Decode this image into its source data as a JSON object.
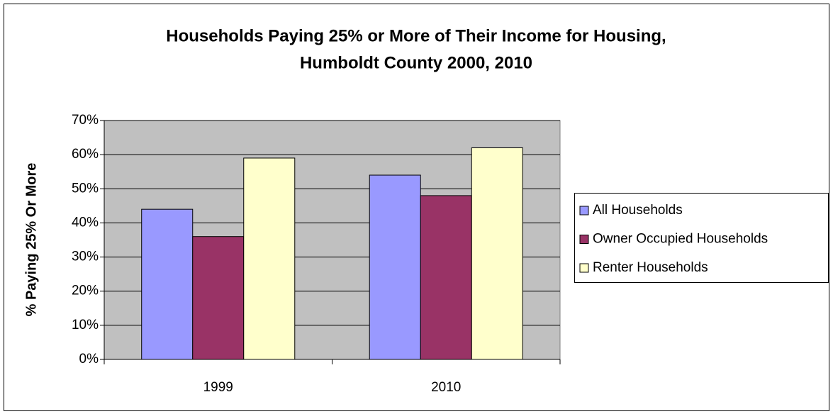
{
  "chart_data": {
    "type": "bar",
    "title": [
      "Households Paying 25% or More of Their Income for Housing,",
      "Humboldt County 2000, 2010"
    ],
    "y_label": "% Paying 25% Or More",
    "categories": [
      "1999",
      "2010"
    ],
    "series": [
      {
        "name": "All Households",
        "color": "#9999ff",
        "values": [
          44,
          54
        ]
      },
      {
        "name": "Owner Occupied Households",
        "color": "#993366",
        "values": [
          36,
          48
        ]
      },
      {
        "name": "Renter Households",
        "color": "#ffffcc",
        "values": [
          59,
          62
        ]
      }
    ],
    "ylim": [
      0,
      70
    ],
    "yticks": [
      {
        "value": 0,
        "label": "0%"
      },
      {
        "value": 10,
        "label": "10%"
      },
      {
        "value": 20,
        "label": "20%"
      },
      {
        "value": 30,
        "label": "30%"
      },
      {
        "value": 40,
        "label": "40%"
      },
      {
        "value": 50,
        "label": "50%"
      },
      {
        "value": 60,
        "label": "60%"
      },
      {
        "value": 70,
        "label": "70%"
      }
    ],
    "grid": true,
    "legend": "right"
  }
}
